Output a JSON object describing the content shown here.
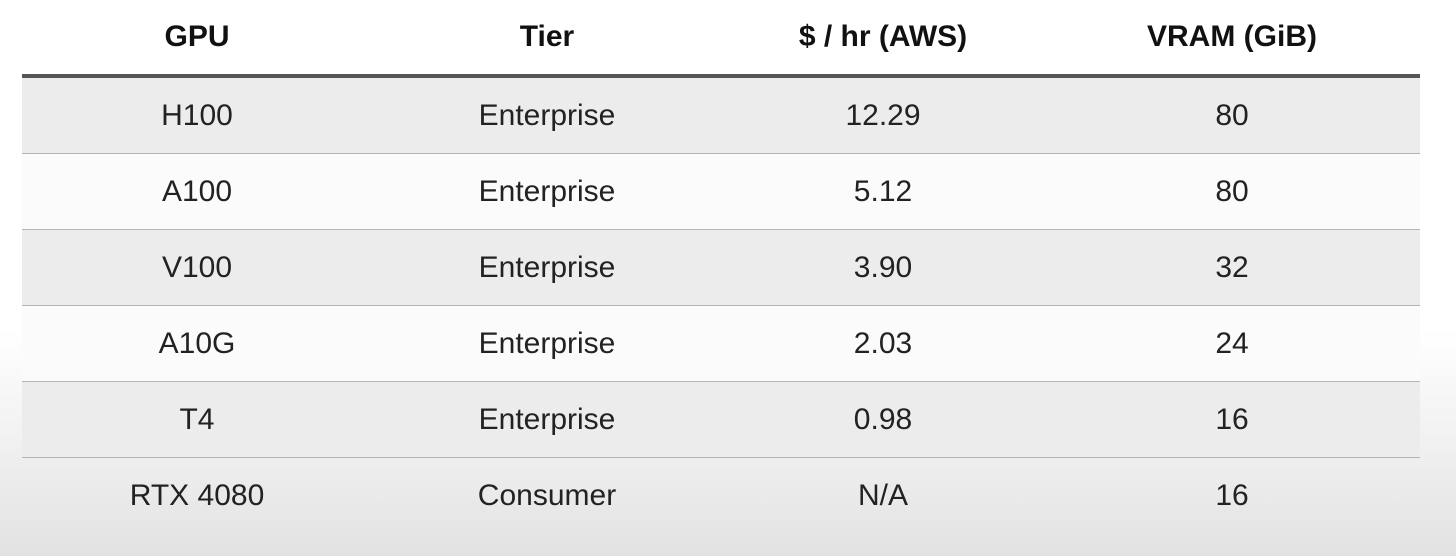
{
  "table": {
    "columns": [
      "GPU",
      "Tier",
      "$ / hr (AWS)",
      "VRAM (GiB)"
    ],
    "rows": [
      [
        "H100",
        "Enterprise",
        "12.29",
        "80"
      ],
      [
        "A100",
        "Enterprise",
        "5.12",
        "80"
      ],
      [
        "V100",
        "Enterprise",
        "3.90",
        "32"
      ],
      [
        "A10G",
        "Enterprise",
        "2.03",
        "24"
      ],
      [
        "T4",
        "Enterprise",
        "0.98",
        "16"
      ],
      [
        "RTX 4080",
        "Consumer",
        "N/A",
        "16"
      ]
    ]
  }
}
